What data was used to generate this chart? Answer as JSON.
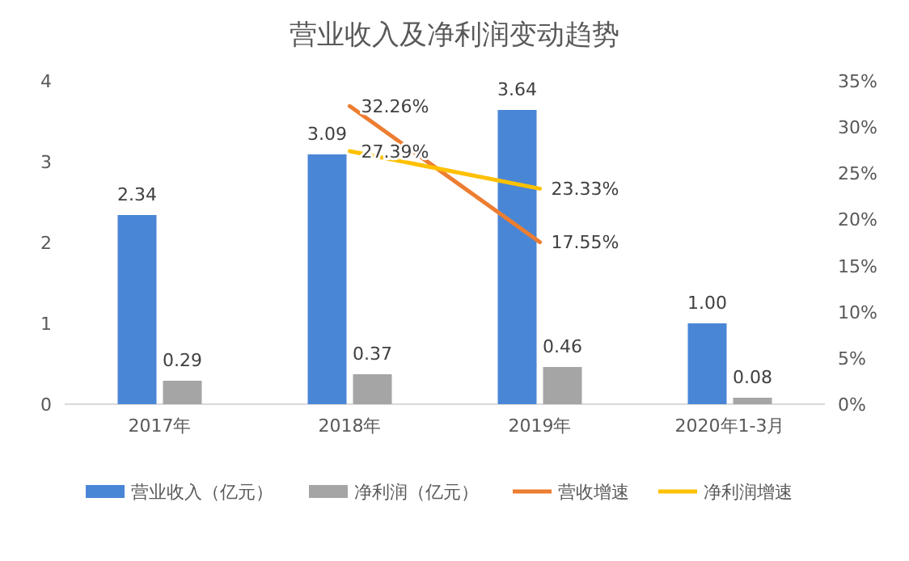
{
  "chart_data": {
    "type": "bar",
    "title": "营业收入及净利润变动趋势",
    "categories": [
      "2017年",
      "2018年",
      "2019年",
      "2020年1-3月"
    ],
    "series": [
      {
        "name": "营业收入（亿元）",
        "color": "#4a86d6",
        "values": [
          2.34,
          3.09,
          3.64,
          1.0
        ],
        "value_labels": [
          "2.34",
          "3.09",
          "3.64",
          "1.00"
        ]
      },
      {
        "name": "净利润（亿元）",
        "color": "#a5a5a5",
        "values": [
          0.29,
          0.37,
          0.46,
          0.08
        ],
        "value_labels": [
          "0.29",
          "0.37",
          "0.46",
          "0.08"
        ]
      },
      {
        "name": "营收增速",
        "type": "line",
        "axis": "y2",
        "color": "#ed7d31",
        "values": [
          null,
          32.26,
          17.55,
          null
        ],
        "value_labels": [
          null,
          "32.26%",
          "17.55%",
          null
        ]
      },
      {
        "name": "净利润增速",
        "type": "line",
        "axis": "y2",
        "color": "#ffc000",
        "values": [
          null,
          27.39,
          23.33,
          null
        ],
        "value_labels": [
          null,
          "27.39%",
          "23.33%",
          null
        ]
      }
    ],
    "ylim": [
      0,
      4
    ],
    "yticks": [
      0,
      1,
      2,
      3,
      4
    ],
    "y2lim": [
      0,
      35
    ],
    "y2ticks": [
      {
        "value": 0,
        "label": "0%"
      },
      {
        "value": 5,
        "label": "5%"
      },
      {
        "value": 10,
        "label": "10%"
      },
      {
        "value": 15,
        "label": "15%"
      },
      {
        "value": 20,
        "label": "20%"
      },
      {
        "value": 25,
        "label": "25%"
      },
      {
        "value": 30,
        "label": "30%"
      },
      {
        "value": 35,
        "label": "35%"
      }
    ],
    "legend": "bottom"
  }
}
